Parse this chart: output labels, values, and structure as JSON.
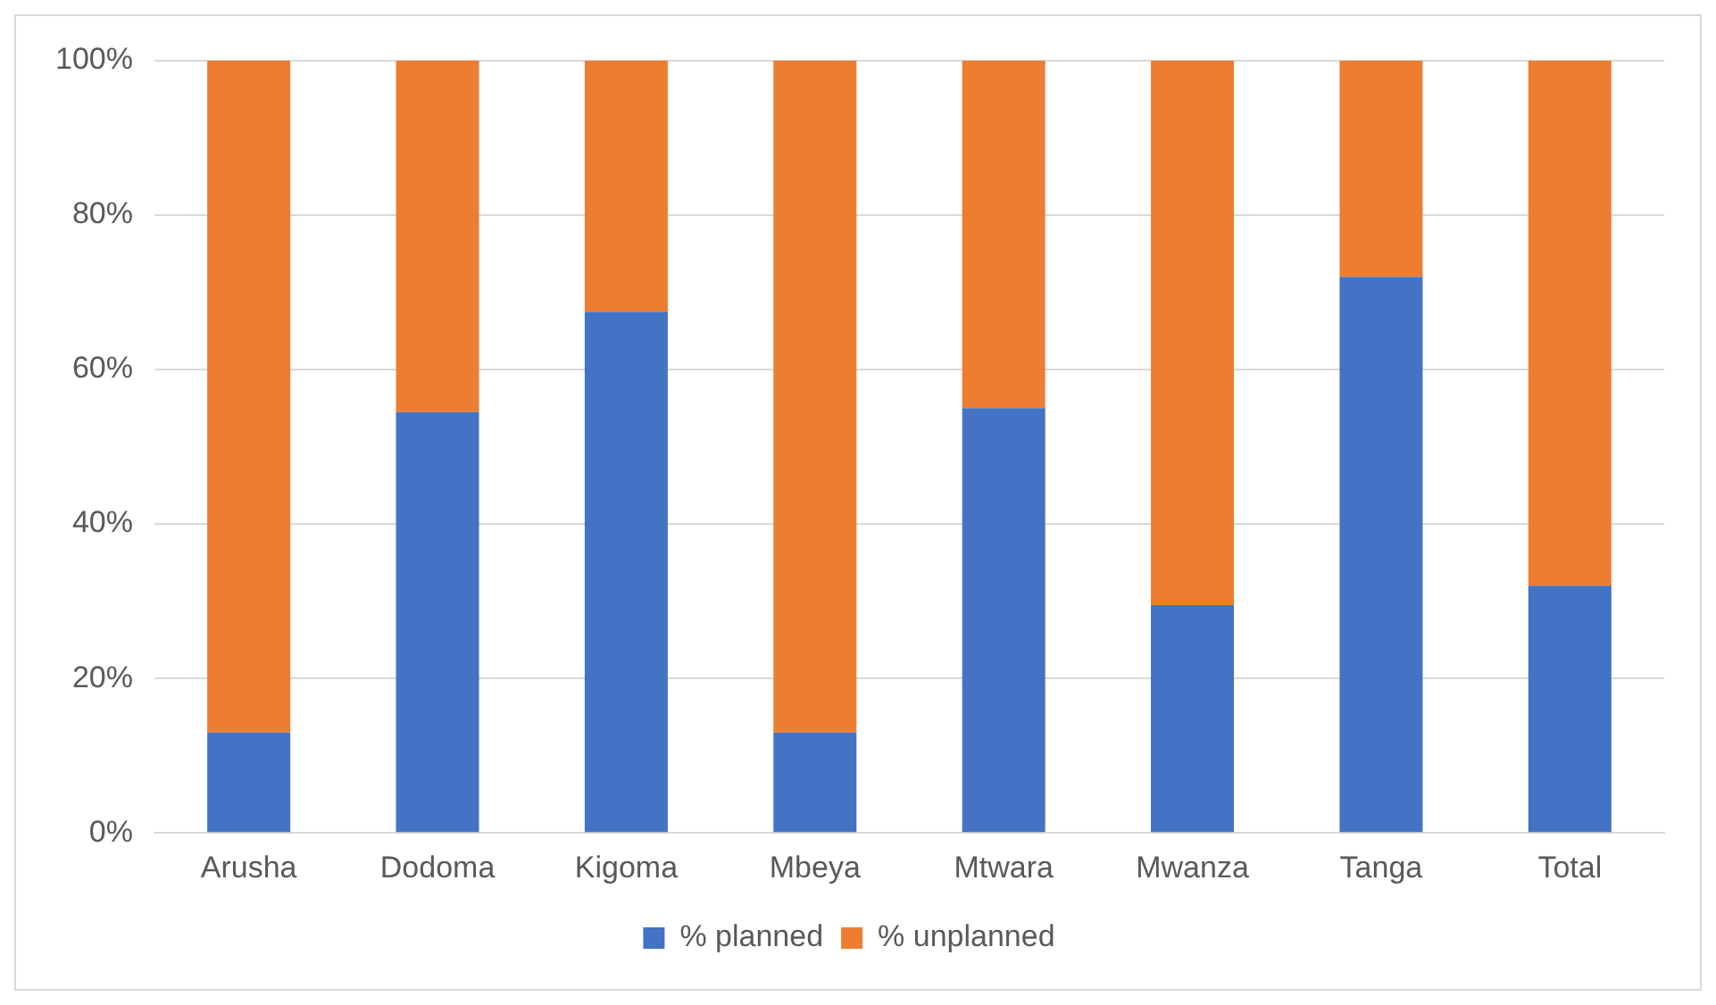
{
  "chart_data": {
    "type": "bar",
    "stacked": true,
    "categories": [
      "Arusha",
      "Dodoma",
      "Kigoma",
      "Mbeya",
      "Mtwara",
      "Mwanza",
      "Tanga",
      "Total"
    ],
    "series": [
      {
        "name": "% planned",
        "color": "#4472c4",
        "values": [
          13,
          54.5,
          67.5,
          13,
          55,
          29.5,
          72,
          32
        ]
      },
      {
        "name": "% unplanned",
        "color": "#ed7d31",
        "values": [
          87,
          45.5,
          32.5,
          87,
          45,
          70.5,
          28,
          68
        ]
      }
    ],
    "ylim": [
      0,
      100
    ],
    "yticks": [
      {
        "value": 0,
        "label": "0%"
      },
      {
        "value": 20,
        "label": "20%"
      },
      {
        "value": 40,
        "label": "40%"
      },
      {
        "value": 60,
        "label": "60%"
      },
      {
        "value": 80,
        "label": "80%"
      },
      {
        "value": 100,
        "label": "100%"
      }
    ],
    "grid": "y",
    "legend": "bottom"
  }
}
